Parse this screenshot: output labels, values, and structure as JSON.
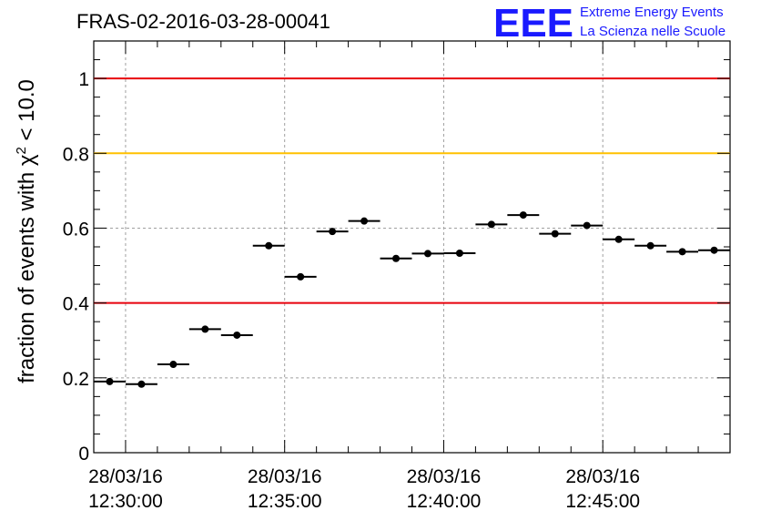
{
  "title": "FRAS-02-2016-03-28-00041",
  "logo": {
    "letters": "EEE",
    "line1": "Extreme Energy Events",
    "line2": "La Scienza nelle Scuole",
    "color": "#1a1aff"
  },
  "chart_data": {
    "type": "scatter",
    "title": "FRAS-02-2016-03-28-00041",
    "ylabel": "fraction of events with χ² < 10.0",
    "ylabel_prefix": "fraction of events with ",
    "ylabel_chi": "χ",
    "ylabel_sup": "2",
    "ylabel_suffix": " < 10.0",
    "xlabel": "",
    "x_unit": "minutes after 28/03/16 12:30:00",
    "xlim": [
      -1.0,
      19.0
    ],
    "ylim": [
      0,
      1.1
    ],
    "grid": true,
    "x_ticks": [
      {
        "x": 0,
        "date": "28/03/16",
        "time": "12:30:00"
      },
      {
        "x": 5,
        "date": "28/03/16",
        "time": "12:35:00"
      },
      {
        "x": 10,
        "date": "28/03/16",
        "time": "12:40:00"
      },
      {
        "x": 15,
        "date": "28/03/16",
        "time": "12:45:00"
      }
    ],
    "y_ticks": [
      {
        "value": 0,
        "label": "0"
      },
      {
        "value": 0.2,
        "label": "0.2"
      },
      {
        "value": 0.4,
        "label": "0.4"
      },
      {
        "value": 0.6,
        "label": "0.6"
      },
      {
        "value": 0.8,
        "label": "0.8"
      },
      {
        "value": 1,
        "label": "1"
      }
    ],
    "reference_lines": [
      {
        "y": 1.0,
        "color": "#e8000b"
      },
      {
        "y": 0.8,
        "color": "#ffc000"
      },
      {
        "y": 0.4,
        "color": "#e8000b"
      }
    ],
    "bin_width_minutes": 1.0,
    "points": [
      {
        "x": -0.5,
        "y": 0.19
      },
      {
        "x": 0.5,
        "y": 0.183
      },
      {
        "x": 1.5,
        "y": 0.236
      },
      {
        "x": 2.5,
        "y": 0.33
      },
      {
        "x": 3.5,
        "y": 0.314
      },
      {
        "x": 4.5,
        "y": 0.553
      },
      {
        "x": 5.5,
        "y": 0.47
      },
      {
        "x": 6.5,
        "y": 0.591
      },
      {
        "x": 7.5,
        "y": 0.619
      },
      {
        "x": 8.5,
        "y": 0.519
      },
      {
        "x": 9.5,
        "y": 0.532
      },
      {
        "x": 10.5,
        "y": 0.533
      },
      {
        "x": 11.5,
        "y": 0.61
      },
      {
        "x": 12.5,
        "y": 0.635
      },
      {
        "x": 13.5,
        "y": 0.585
      },
      {
        "x": 14.5,
        "y": 0.607
      },
      {
        "x": 15.5,
        "y": 0.57
      },
      {
        "x": 16.5,
        "y": 0.553
      },
      {
        "x": 17.5,
        "y": 0.537
      },
      {
        "x": 18.5,
        "y": 0.541
      }
    ]
  }
}
